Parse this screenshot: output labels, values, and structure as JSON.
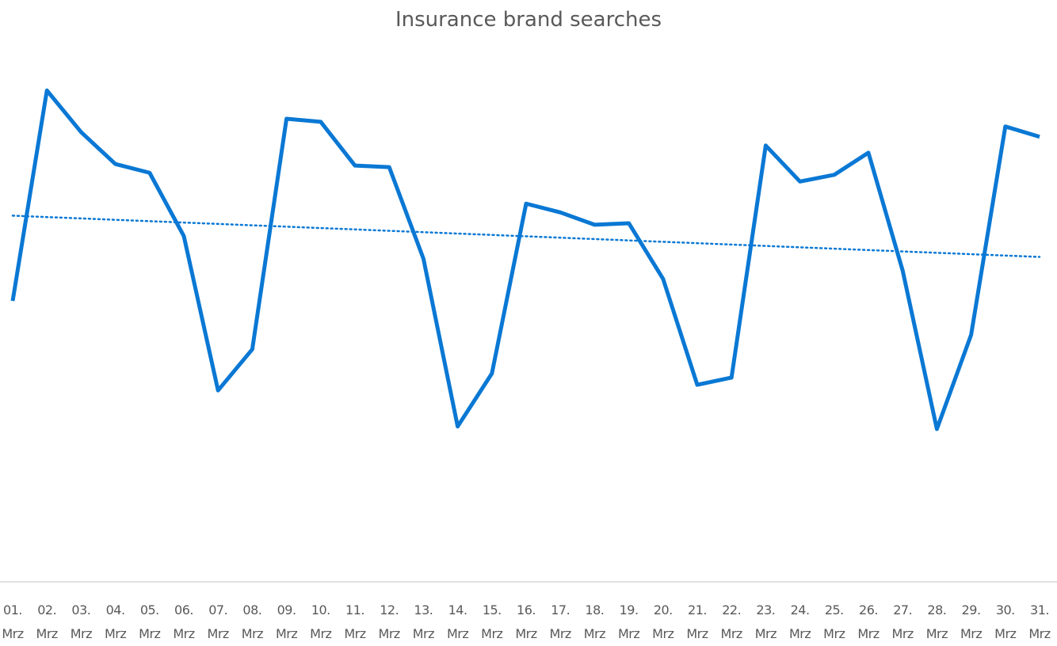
{
  "chart_data": {
    "type": "line",
    "title": "Insurance brand searches",
    "categories": [
      "01. Mrz",
      "02. Mrz",
      "03. Mrz",
      "04. Mrz",
      "05. Mrz",
      "06. Mrz",
      "07. Mrz",
      "08. Mrz",
      "09. Mrz",
      "10. Mrz",
      "11. Mrz",
      "12. Mrz",
      "13. Mrz",
      "14. Mrz",
      "15. Mrz",
      "16. Mrz",
      "17. Mrz",
      "18. Mrz",
      "19. Mrz",
      "20. Mrz",
      "21. Mrz",
      "22. Mrz",
      "23. Mrz",
      "24. Mrz",
      "25. Mrz",
      "26. Mrz",
      "27. Mrz",
      "28. Mrz",
      "29. Mrz",
      "30. Mrz",
      "31. Mrz"
    ],
    "values": [
      54.6,
      95.5,
      87.4,
      81.2,
      79.5,
      67.2,
      37.2,
      45.2,
      90.0,
      89.4,
      80.9,
      80.6,
      62.8,
      30.2,
      40.5,
      73.5,
      71.8,
      69.4,
      69.7,
      58.9,
      38.3,
      39.7,
      84.8,
      77.8,
      79.1,
      83.4,
      60.5,
      29.7,
      48.0,
      88.5,
      86.5
    ],
    "color": "#0a78d4",
    "ylim": [
      0,
      100
    ],
    "trendline": true
  }
}
